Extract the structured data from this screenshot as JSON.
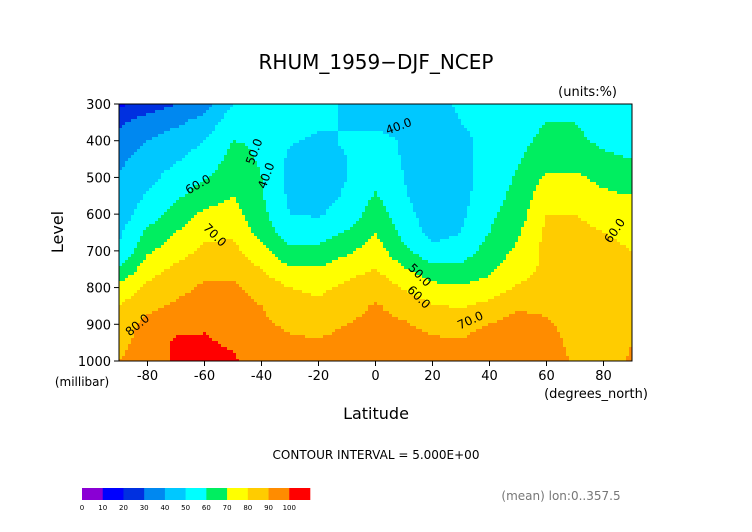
{
  "chart_data": {
    "type": "heatmap",
    "subtype": "filled-contour",
    "title": "RHUM_1959−DJF_NCEP",
    "units_label": "(units:%)",
    "xlabel": "Latitude",
    "x_units_label": "(degrees_north)",
    "ylabel": "Level",
    "y_units_label": "(millibar)",
    "xlim": [
      -90,
      90
    ],
    "ylim": [
      1000,
      300
    ],
    "x_ticks": [
      -80,
      -60,
      -40,
      -20,
      0,
      20,
      40,
      60,
      80
    ],
    "y_ticks": [
      300,
      400,
      500,
      600,
      700,
      800,
      900,
      1000
    ],
    "contour_interval_text": "CONTOUR INTERVAL = 5.000E+00",
    "footer_note": "(mean) lon:0..357.5",
    "x": [
      -90,
      -80,
      -70,
      -60,
      -50,
      -40,
      -30,
      -20,
      -10,
      0,
      10,
      20,
      30,
      40,
      50,
      60,
      70,
      80,
      90
    ],
    "y": [
      300,
      350,
      400,
      450,
      500,
      550,
      600,
      650,
      700,
      750,
      800,
      850,
      900,
      950,
      1000
    ],
    "z": [
      [
        8,
        15,
        20,
        26,
        40,
        47,
        45,
        42,
        39,
        38,
        38,
        38,
        41,
        43,
        46,
        48,
        47,
        44,
        40
      ],
      [
        18,
        25,
        28,
        34,
        46,
        49,
        45,
        42,
        39,
        38,
        37,
        37,
        40,
        43,
        47,
        50,
        50,
        46,
        42
      ],
      [
        24,
        30,
        35,
        40,
        50,
        49,
        41,
        38,
        41,
        43,
        39,
        35,
        38,
        43,
        48,
        52,
        52,
        48,
        46
      ],
      [
        28,
        34,
        39,
        44,
        53,
        49,
        38,
        37,
        40,
        46,
        39,
        33,
        37,
        44,
        49,
        55,
        55,
        52,
        50
      ],
      [
        31,
        37,
        44,
        49,
        56,
        50,
        37,
        36,
        40,
        48,
        40,
        32,
        36,
        45,
        51,
        62,
        62,
        57,
        54
      ],
      [
        33,
        41,
        48,
        55,
        60,
        51,
        38,
        37,
        41,
        51,
        41,
        33,
        37,
        46,
        53,
        67,
        67,
        62,
        60
      ],
      [
        35,
        45,
        54,
        62,
        64,
        53,
        40,
        39,
        44,
        55,
        44,
        34,
        38,
        48,
        55,
        70,
        70,
        66,
        64
      ],
      [
        38,
        52,
        60,
        68,
        68,
        56,
        45,
        45,
        51,
        60,
        47,
        36,
        40,
        50,
        59,
        72,
        73,
        70,
        68
      ],
      [
        41,
        58,
        66,
        72,
        73,
        63,
        52,
        53,
        58,
        65,
        52,
        43,
        45,
        54,
        62,
        73,
        74,
        72,
        70
      ],
      [
        50,
        66,
        72,
        76,
        77,
        70,
        61,
        61,
        66,
        70,
        61,
        53,
        53,
        58,
        66,
        72,
        74,
        71,
        70
      ],
      [
        64,
        72,
        76,
        82,
        82,
        76,
        70,
        68,
        72,
        77,
        69,
        63,
        61,
        64,
        71,
        73,
        74,
        72,
        72
      ],
      [
        70,
        77,
        82,
        86,
        84,
        80,
        74,
        72,
        76,
        81,
        76,
        71,
        69,
        73,
        78,
        77,
        74,
        72,
        76
      ],
      [
        74,
        83,
        88,
        89,
        86,
        82,
        78,
        76,
        80,
        83,
        81,
        77,
        75,
        80,
        85,
        82,
        74,
        70,
        78
      ],
      [
        77,
        85,
        91,
        91,
        89,
        85,
        82,
        81,
        84,
        86,
        85,
        82,
        81,
        87,
        89,
        86,
        76,
        71,
        80
      ],
      [
        80,
        86,
        91,
        92,
        91,
        87,
        85,
        85,
        87,
        88,
        87,
        85,
        84,
        89,
        90,
        88,
        78,
        73,
        82
      ]
    ],
    "contour_labels": [
      "40.0",
      "50.0",
      "40.0",
      "60.0",
      "70.0",
      "80.0",
      "50.0",
      "60.0",
      "70.0",
      "60.0"
    ],
    "colorbar": {
      "bounds": [
        0,
        10,
        20,
        30,
        40,
        50,
        60,
        70,
        80,
        90,
        100
      ],
      "colors": [
        "#8a00d4",
        "#0000ff",
        "#0030e0",
        "#0088f0",
        "#00c8ff",
        "#00ffff",
        "#00ee60",
        "#ffff00",
        "#ffcc00",
        "#ff8c00",
        "#ff0000"
      ]
    }
  }
}
